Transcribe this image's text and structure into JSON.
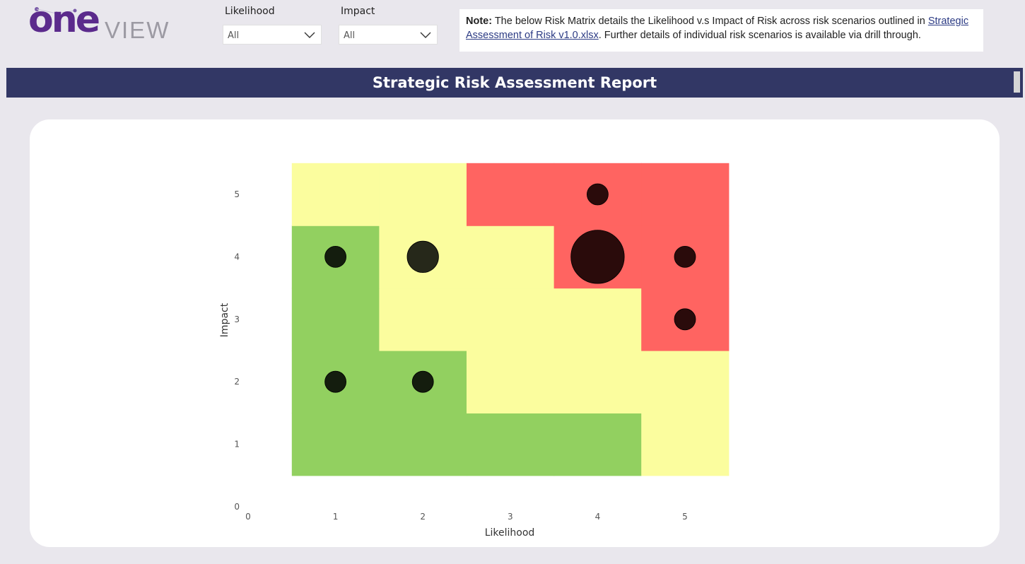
{
  "logo": {
    "one": "one",
    "view": "VIEW"
  },
  "filters": [
    {
      "label": "Likelihood",
      "value": "All"
    },
    {
      "label": "Impact",
      "value": "All"
    }
  ],
  "note": {
    "bold": "Note:",
    "text_before": " The below Risk Matrix details the Likelihood v.s Impact of Risk across risk scenarios outlined in ",
    "link": "Strategic Assessment of Risk v1.0.xlsx",
    "text_after": ". Further details of individual risk scenarios is available via drill through."
  },
  "report": {
    "title": "Strategic Risk Assessment Report"
  },
  "colors": {
    "low": "#92d060",
    "medium": "#fbfd9e",
    "high": "#ff6461",
    "title_bar": "#323765",
    "brand": "#5b2a8c"
  },
  "chart_data": {
    "type": "scatter",
    "xlabel": "Likelihood",
    "ylabel": "Impact",
    "xlim": [
      0,
      5.5
    ],
    "ylim": [
      0,
      5.5
    ],
    "x_ticks": [
      "0",
      "1",
      "2",
      "3",
      "4",
      "5"
    ],
    "y_ticks": [
      "0",
      "1",
      "2",
      "3",
      "4",
      "5"
    ],
    "background_zones": [
      {
        "x": 1,
        "y": 1,
        "zone": "low"
      },
      {
        "x": 2,
        "y": 1,
        "zone": "low"
      },
      {
        "x": 3,
        "y": 1,
        "zone": "low"
      },
      {
        "x": 4,
        "y": 1,
        "zone": "low"
      },
      {
        "x": 5,
        "y": 1,
        "zone": "medium"
      },
      {
        "x": 1,
        "y": 2,
        "zone": "low"
      },
      {
        "x": 2,
        "y": 2,
        "zone": "low"
      },
      {
        "x": 3,
        "y": 2,
        "zone": "medium"
      },
      {
        "x": 4,
        "y": 2,
        "zone": "medium"
      },
      {
        "x": 5,
        "y": 2,
        "zone": "medium"
      },
      {
        "x": 1,
        "y": 3,
        "zone": "low"
      },
      {
        "x": 2,
        "y": 3,
        "zone": "medium"
      },
      {
        "x": 3,
        "y": 3,
        "zone": "medium"
      },
      {
        "x": 4,
        "y": 3,
        "zone": "medium"
      },
      {
        "x": 5,
        "y": 3,
        "zone": "high"
      },
      {
        "x": 1,
        "y": 4,
        "zone": "low"
      },
      {
        "x": 2,
        "y": 4,
        "zone": "medium"
      },
      {
        "x": 3,
        "y": 4,
        "zone": "medium"
      },
      {
        "x": 4,
        "y": 4,
        "zone": "high"
      },
      {
        "x": 5,
        "y": 4,
        "zone": "high"
      },
      {
        "x": 1,
        "y": 5,
        "zone": "medium"
      },
      {
        "x": 2,
        "y": 5,
        "zone": "medium"
      },
      {
        "x": 3,
        "y": 5,
        "zone": "high"
      },
      {
        "x": 4,
        "y": 5,
        "zone": "high"
      },
      {
        "x": 5,
        "y": 5,
        "zone": "high"
      }
    ],
    "points": [
      {
        "x": 1,
        "y": 4,
        "count": 1
      },
      {
        "x": 2,
        "y": 4,
        "count": 2
      },
      {
        "x": 4,
        "y": 4,
        "count": 6
      },
      {
        "x": 5,
        "y": 4,
        "count": 1
      },
      {
        "x": 4,
        "y": 5,
        "count": 1
      },
      {
        "x": 5,
        "y": 3,
        "count": 1
      },
      {
        "x": 1,
        "y": 2,
        "count": 1
      },
      {
        "x": 2,
        "y": 2,
        "count": 1
      }
    ]
  }
}
